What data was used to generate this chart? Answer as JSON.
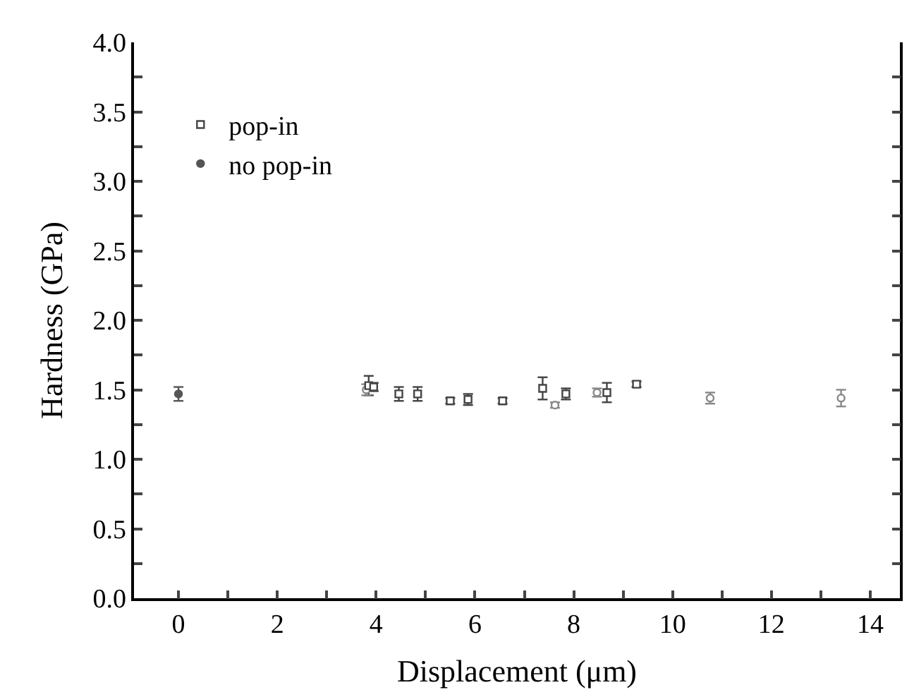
{
  "chart_data": {
    "type": "scatter",
    "xlabel": "Displacement (μm)",
    "ylabel": "Hardness (GPa)",
    "xlim": [
      -0.9,
      14.6
    ],
    "ylim": [
      0,
      4
    ],
    "xticks": [
      0,
      {
        "value": 1,
        "label": null
      },
      2,
      {
        "value": 3,
        "label": null
      },
      4,
      {
        "value": 5,
        "label": null
      },
      6,
      {
        "value": 7,
        "label": null
      },
      8,
      {
        "value": 9,
        "label": null
      },
      10,
      {
        "value": 11,
        "label": null
      },
      12,
      {
        "value": 13,
        "label": null
      },
      14
    ],
    "yticks": [
      "0.0",
      {
        "value": 0.25,
        "label": null
      },
      {
        "value": 0.5,
        "label": "0.5"
      },
      {
        "value": 0.75,
        "label": null
      },
      {
        "value": 1,
        "label": "1.0"
      },
      {
        "value": 1.25,
        "label": null
      },
      {
        "value": 1.5,
        "label": "1.5"
      },
      {
        "value": 1.75,
        "label": null
      },
      {
        "value": 2,
        "label": "2.0"
      },
      {
        "value": 2.25,
        "label": null
      },
      {
        "value": 2.5,
        "label": "2.5"
      },
      {
        "value": 2.75,
        "label": null
      },
      {
        "value": 3,
        "label": "3.0"
      },
      {
        "value": 3.25,
        "label": null
      },
      {
        "value": 3.5,
        "label": "3.5"
      },
      {
        "value": 3.75,
        "label": null
      },
      {
        "value": 4,
        "label": "4.0"
      }
    ],
    "legend": "top left",
    "series": [
      {
        "name": "pop-in",
        "color": "#444444",
        "marker": "square",
        "x": [
          3.85,
          3.95,
          4.46,
          4.84,
          5.5,
          5.86,
          6.56,
          7.37,
          7.84,
          8.67,
          9.27
        ],
        "values": [
          1.53,
          1.52,
          1.47,
          1.47,
          1.42,
          1.43,
          1.42,
          1.51,
          1.47,
          1.48,
          1.54
        ],
        "errors": [
          0.07,
          0.03,
          0.05,
          0.05,
          0.02,
          0.04,
          0.02,
          0.08,
          0.04,
          0.07,
          0.02
        ]
      },
      {
        "name": "no pop-in",
        "color": "#555555",
        "marker": "circle",
        "x": [
          0
        ],
        "values": [
          1.47
        ],
        "errors": [
          0.05
        ]
      },
      {
        "color": "#888888",
        "marker": "circle",
        "x": [
          3.8,
          7.62,
          8.47,
          10.76,
          13.41
        ],
        "values": [
          1.5,
          1.39,
          1.48,
          1.44,
          1.44
        ],
        "errors": [
          0.04,
          0.02,
          0.03,
          0.04,
          0.06
        ]
      }
    ]
  }
}
